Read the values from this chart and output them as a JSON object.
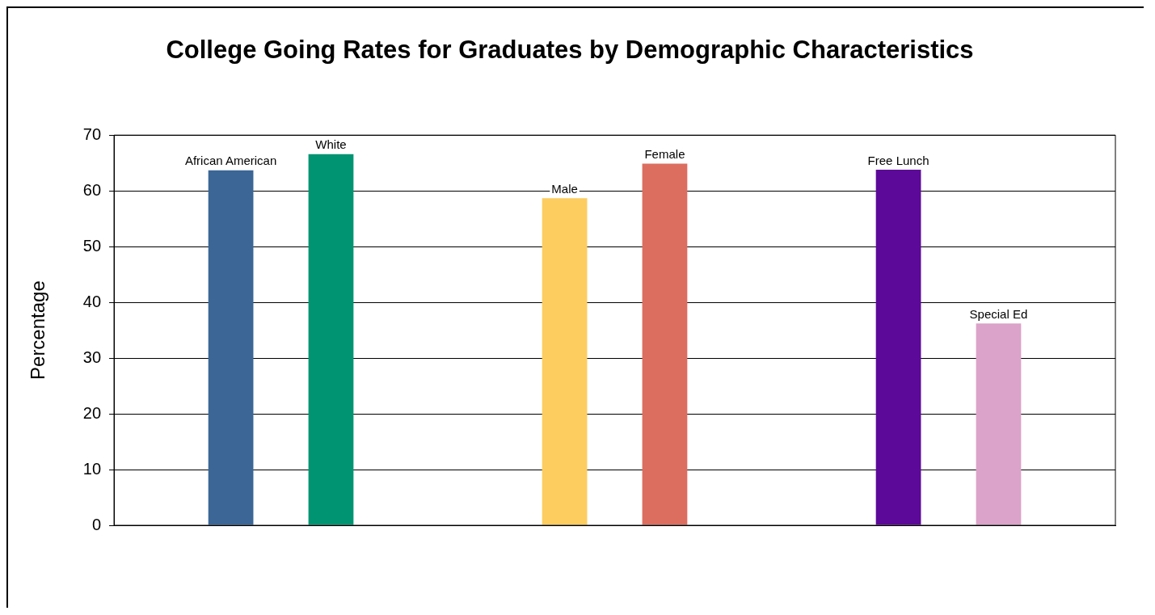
{
  "chart_data": {
    "type": "bar",
    "title": "College Going Rates for Graduates by Demographic Characteristics",
    "ylabel": "Percentage",
    "categories": [
      null,
      null,
      null
    ],
    "series": [
      {
        "name": "African American",
        "color": "#3b6696",
        "values": [
          63.7,
          null,
          null
        ]
      },
      {
        "name": "White",
        "color": "#009472",
        "values": [
          66.6,
          null,
          null
        ]
      },
      {
        "name": "Male",
        "color": "#fdcd60",
        "values": [
          null,
          58.7,
          null
        ]
      },
      {
        "name": "Female",
        "color": "#dc6e60",
        "values": [
          null,
          64.9,
          null
        ]
      },
      {
        "name": "Free Lunch",
        "color": "#5c0898",
        "values": [
          null,
          null,
          63.8
        ]
      },
      {
        "name": "Special Ed",
        "color": "#dba3c9",
        "values": [
          null,
          null,
          36.2
        ]
      }
    ],
    "ylim": [
      0,
      70
    ],
    "yticks": [
      0,
      10,
      20,
      30,
      40,
      50,
      60,
      70
    ],
    "grid": "y",
    "legend": false
  }
}
